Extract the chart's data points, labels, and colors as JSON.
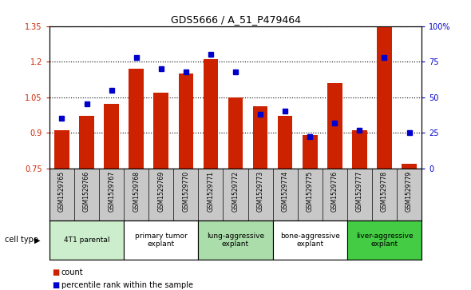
{
  "title": "GDS5666 / A_51_P479464",
  "samples": [
    "GSM1529765",
    "GSM1529766",
    "GSM1529767",
    "GSM1529768",
    "GSM1529769",
    "GSM1529770",
    "GSM1529771",
    "GSM1529772",
    "GSM1529773",
    "GSM1529774",
    "GSM1529775",
    "GSM1529776",
    "GSM1529777",
    "GSM1529778",
    "GSM1529779"
  ],
  "counts": [
    0.91,
    0.97,
    1.02,
    1.17,
    1.07,
    1.15,
    1.21,
    1.05,
    1.01,
    0.97,
    0.89,
    1.11,
    0.91,
    1.35,
    0.77
  ],
  "percentiles": [
    35,
    45,
    55,
    78,
    70,
    68,
    80,
    68,
    38,
    40,
    22,
    32,
    27,
    78,
    25
  ],
  "ylim_left": [
    0.75,
    1.35
  ],
  "ylim_right": [
    0,
    100
  ],
  "yticks_left": [
    0.75,
    0.9,
    1.05,
    1.2,
    1.35
  ],
  "yticks_right": [
    0,
    25,
    50,
    75,
    100
  ],
  "ytick_labels_right": [
    "0",
    "25",
    "50",
    "75",
    "100%"
  ],
  "bar_color": "#cc2200",
  "dot_color": "#0000cc",
  "bg_color": "#ffffff",
  "sample_bg_color": "#c8c8c8",
  "cell_types": [
    {
      "label": "4T1 parental",
      "start": 0,
      "end": 3,
      "color": "#cceecc"
    },
    {
      "label": "primary tumor\nexplant",
      "start": 3,
      "end": 6,
      "color": "#ffffff"
    },
    {
      "label": "lung-aggressive\nexplant",
      "start": 6,
      "end": 9,
      "color": "#aaddaa"
    },
    {
      "label": "bone-aggressive\nexplant",
      "start": 9,
      "end": 12,
      "color": "#ffffff"
    },
    {
      "label": "liver-aggressive\nexplant",
      "start": 12,
      "end": 15,
      "color": "#44cc44"
    }
  ],
  "legend_count_color": "#cc2200",
  "legend_pct_color": "#0000cc",
  "axis_label_color_left": "#cc2200",
  "axis_label_color_right": "#0000cc",
  "cell_type_label": "cell type"
}
